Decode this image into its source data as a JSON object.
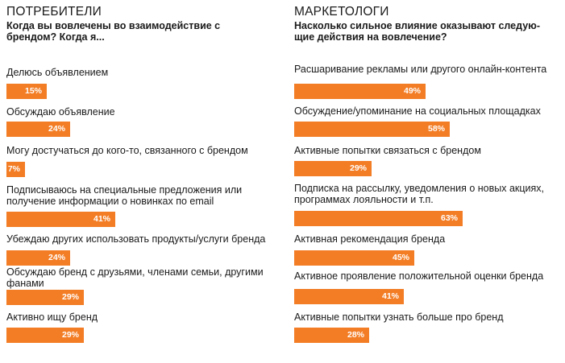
{
  "chart_data": [
    {
      "type": "bar",
      "title": "ПОТРЕБИТЕЛИ",
      "subtitle": "Когда вы вовлечены во взаимодействие с брендом? Когда я...",
      "categories": [
        "Делюсь объявлением",
        "Обсуждаю объявление",
        "Могу достучаться до кого-то, связанного с брендом",
        "Подписываюсь на специальные предложения или получение информации о новинках по email",
        "Убеждаю других использовать продукты/услуги бренда",
        "Обсуждаю бренд с друзьями, членами семьи, другими фанами",
        "Активно ищу бренд"
      ],
      "values": [
        15,
        24,
        7,
        41,
        24,
        29,
        29
      ],
      "value_labels": [
        "15%",
        "24%",
        "7%",
        "41%",
        "24%",
        "29%",
        "29%"
      ],
      "unit": "%",
      "xlim": [
        0,
        100
      ],
      "grid": false,
      "color": "#f37d25"
    },
    {
      "type": "bar",
      "title": "МАРКЕТОЛОГИ",
      "subtitle": "Насколько сильное влияние оказывают следую-щие действия на вовлечение?",
      "categories": [
        "Расшаривание рекламы или другого онлайн-контента",
        "Обсуждение/упоминание на социальных площадках",
        "Активные попытки связаться с брендом",
        "Подписка на рассылку, уведомления о новых акциях, программах лояльности и т.п.",
        "Активная рекомендация бренда",
        "Активное проявление положительной оценки бренда",
        "Активные попытки узнать больше про бренд"
      ],
      "values": [
        49,
        58,
        29,
        63,
        45,
        41,
        28
      ],
      "value_labels": [
        "49%",
        "58%",
        "29%",
        "63%",
        "45%",
        "41%",
        "28%"
      ],
      "unit": "%",
      "xlim": [
        0,
        100
      ],
      "grid": false,
      "color": "#f37d25"
    }
  ]
}
